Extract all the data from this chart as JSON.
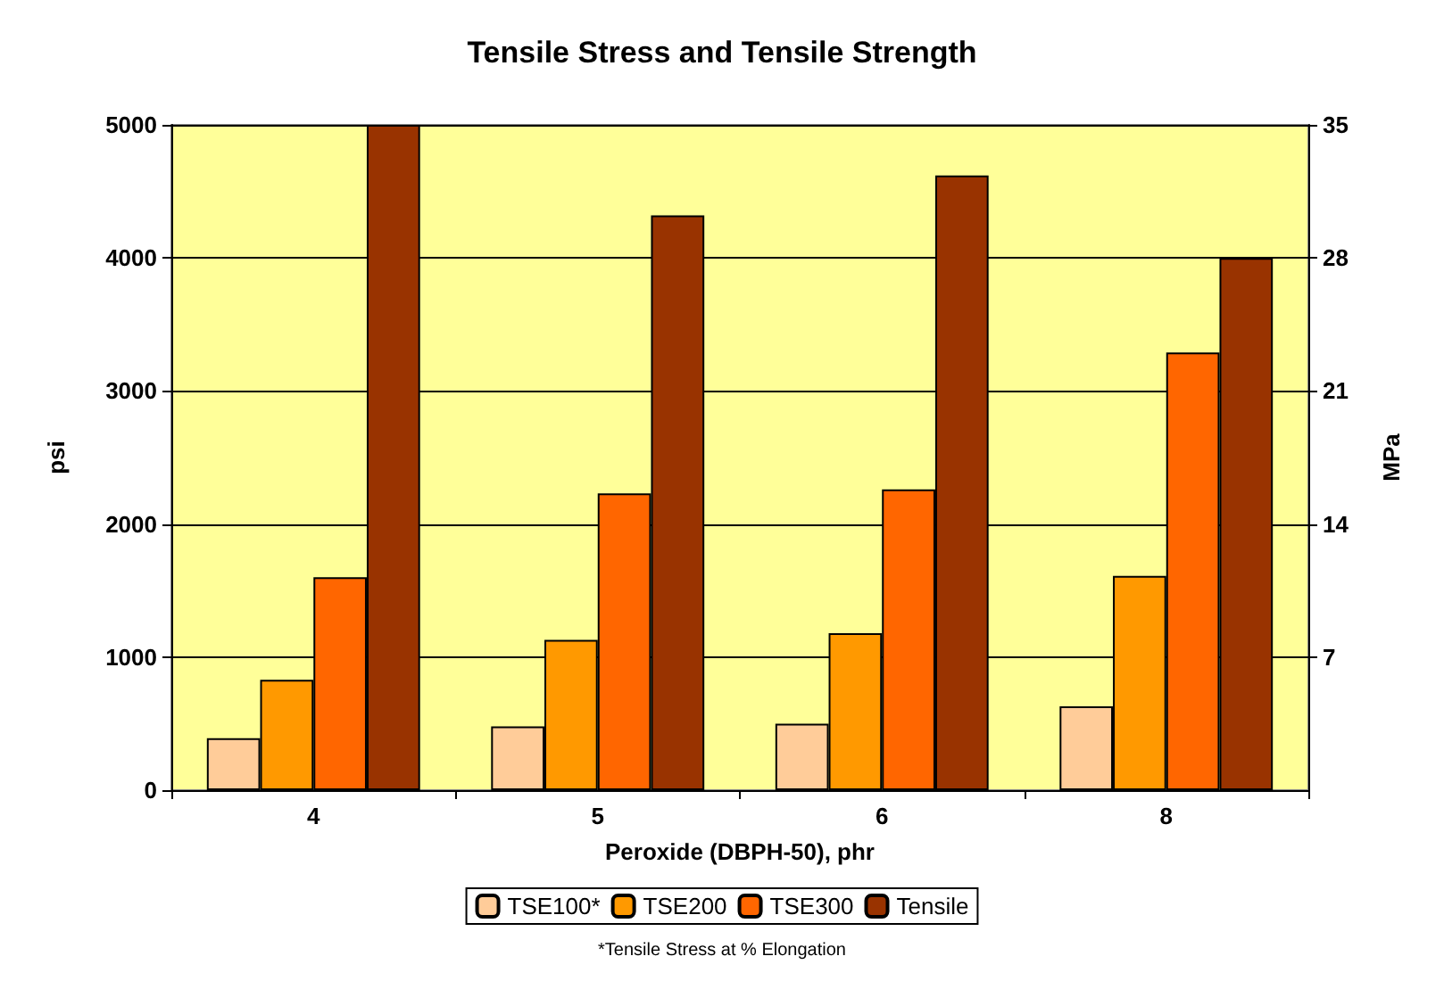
{
  "chart_data": {
    "type": "bar",
    "title": "Tensile Stress and Tensile Strength",
    "xlabel": "Peroxide (DBPH-50), phr",
    "ylabel": "psi",
    "y2label": "MPa",
    "categories": [
      "4",
      "5",
      "6",
      "8"
    ],
    "series": [
      {
        "name": "TSE100*",
        "color": "#ffcc99",
        "values": [
          390,
          480,
          500,
          630
        ]
      },
      {
        "name": "TSE200",
        "color": "#ff9900",
        "values": [
          830,
          1130,
          1180,
          1610
        ]
      },
      {
        "name": "TSE300",
        "color": "#ff6600",
        "values": [
          1600,
          2230,
          2260,
          3290
        ]
      },
      {
        "name": "Tensile",
        "color": "#993300",
        "values": [
          5000,
          4320,
          4620,
          4000
        ]
      }
    ],
    "ylim": [
      0,
      5000
    ],
    "yticks": [
      0,
      1000,
      2000,
      3000,
      4000,
      5000
    ],
    "y2lim": [
      0,
      35
    ],
    "y2ticks": [
      7,
      14,
      21,
      28,
      35
    ],
    "grid": "y",
    "legend": "bottom",
    "annotations": [
      "*Tensile Stress at % Elongation"
    ]
  }
}
